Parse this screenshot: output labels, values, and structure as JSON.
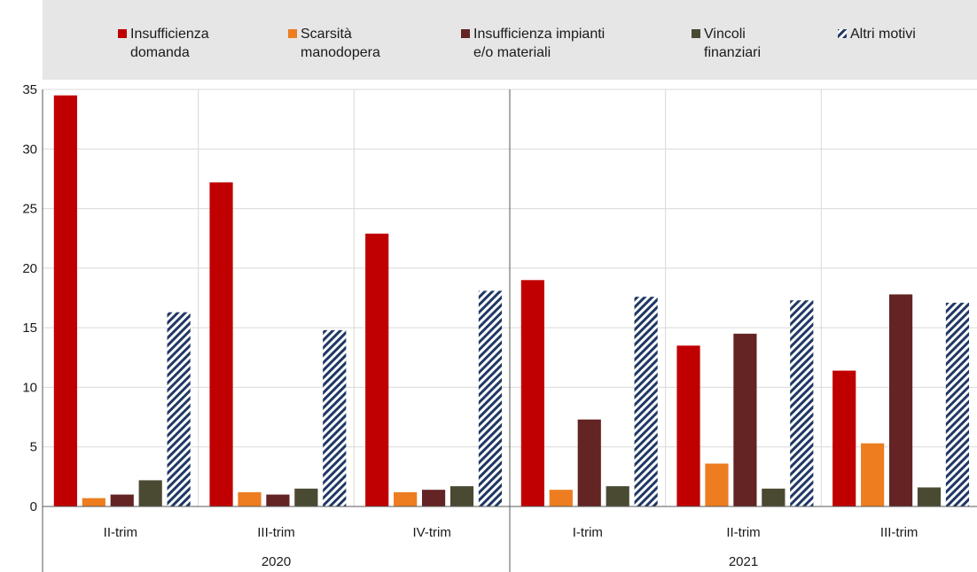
{
  "chart_data": {
    "type": "bar",
    "groups": [
      {
        "label": "2020",
        "categories": [
          "II-trim",
          "III-trim",
          "IV-trim"
        ]
      },
      {
        "label": "2021",
        "categories": [
          "I-trim",
          "II-trim",
          "III-trim"
        ]
      }
    ],
    "categories": [
      "II-trim",
      "III-trim",
      "IV-trim",
      "I-trim",
      "II-trim",
      "III-trim"
    ],
    "series": [
      {
        "name": "Insufficienza domanda",
        "legend_lines": [
          "Insufficienza",
          "domanda"
        ],
        "color": "#c00000",
        "pattern": "solid",
        "values": [
          34.5,
          27.2,
          22.9,
          19.0,
          13.5,
          11.4
        ]
      },
      {
        "name": "Scarsità manodopera",
        "legend_lines": [
          "Scarsità",
          "manodopera"
        ],
        "color": "#ed7d1f",
        "pattern": "solid",
        "values": [
          0.7,
          1.2,
          1.2,
          1.4,
          3.6,
          5.3
        ]
      },
      {
        "name": "Insufficienza impianti e/o materiali",
        "legend_lines": [
          "Insufficienza impianti",
          "e/o materiali"
        ],
        "color": "#632423",
        "pattern": "solid",
        "values": [
          1.0,
          1.0,
          1.4,
          7.3,
          14.5,
          17.8
        ]
      },
      {
        "name": "Vincoli finanziari",
        "legend_lines": [
          "Vincoli",
          "finanziari"
        ],
        "color": "#4a4a33",
        "pattern": "solid",
        "values": [
          2.2,
          1.5,
          1.7,
          1.7,
          1.5,
          1.6
        ]
      },
      {
        "name": "Altri motivi",
        "legend_lines": [
          "Altri motivi"
        ],
        "color": "#1f3864",
        "pattern": "diagonal-stripes",
        "values": [
          16.3,
          14.8,
          18.1,
          17.6,
          17.3,
          17.1
        ]
      }
    ],
    "ylim": [
      0,
      35
    ],
    "yticks": [
      0,
      5,
      10,
      15,
      20,
      25,
      30,
      35
    ],
    "grid": true,
    "legend_position": "top"
  }
}
